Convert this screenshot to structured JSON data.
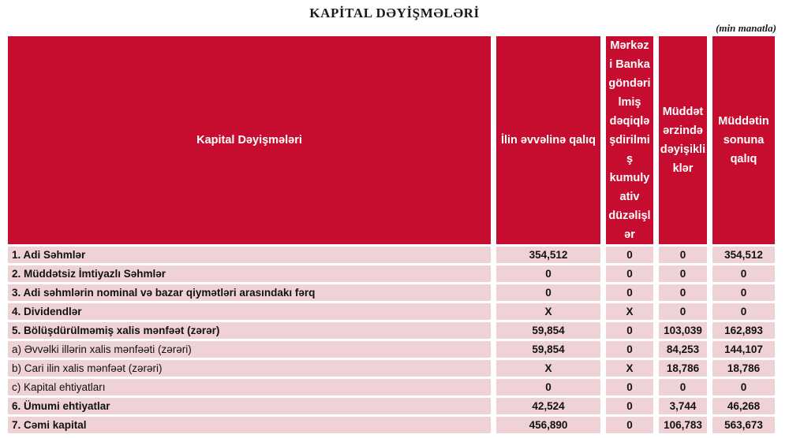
{
  "page": {
    "title": "KAPİTAL DƏYİŞMƏLƏRİ",
    "unit_note": "(min manatla)"
  },
  "colors": {
    "header_bg": "#C60D2F",
    "header_text": "#FFFFFF",
    "row_bg": "#EFD2D5",
    "row_text": "#111111"
  },
  "table": {
    "columns": [
      {
        "label": "Kapital Dəyişmələri"
      },
      {
        "label": "İlin əvvəlinə qalıq"
      },
      {
        "label": "Mərkəz\ni Banka\ngöndəri\nlmiş\ndəqiqlə\nşdirilmi\nş\nkumuly\nativ\ndüzəlişl\nər"
      },
      {
        "label": "Müddət\nərzində\ndəyişikli\nklər"
      },
      {
        "label": "Müddətin\nsonuna\nqalıq"
      }
    ],
    "rows": [
      {
        "label": "1. Adi Səhmlər",
        "bold": true,
        "values": [
          "354,512",
          "0",
          "0",
          "354,512"
        ]
      },
      {
        "label": "2. Müddətsiz İmtiyazlı Səhmlər",
        "bold": true,
        "values": [
          "0",
          "0",
          "0",
          "0"
        ]
      },
      {
        "label": "3. Adi səhmlərin nominal və bazar qiymətləri arasındakı fərq",
        "bold": true,
        "values": [
          "0",
          "0",
          "0",
          "0"
        ]
      },
      {
        "label": "4. Dividendlər",
        "bold": true,
        "values": [
          "X",
          "X",
          "0",
          "0"
        ]
      },
      {
        "label": "5. Bölüşdürülməmiş xalis mənfəət (zərər)",
        "bold": true,
        "values": [
          "59,854",
          "0",
          "103,039",
          "162,893"
        ]
      },
      {
        "label": "a) Əvvəlki illərin xalis mənfəəti (zərəri)",
        "bold": false,
        "values": [
          "59,854",
          "0",
          "84,253",
          "144,107"
        ]
      },
      {
        "label": "b) Cari ilin xalis mənfəət (zərəri)",
        "bold": false,
        "values": [
          "X",
          "X",
          "18,786",
          "18,786"
        ]
      },
      {
        "label": "c) Kapital ehtiyatları",
        "bold": false,
        "values": [
          "0",
          "0",
          "0",
          "0"
        ]
      },
      {
        "label": "6. Ümumi ehtiyatlar",
        "bold": true,
        "values": [
          "42,524",
          "0",
          "3,744",
          "46,268"
        ]
      },
      {
        "label": "7. Cəmi kapital",
        "bold": true,
        "values": [
          "456,890",
          "0",
          "106,783",
          "563,673"
        ]
      }
    ]
  }
}
